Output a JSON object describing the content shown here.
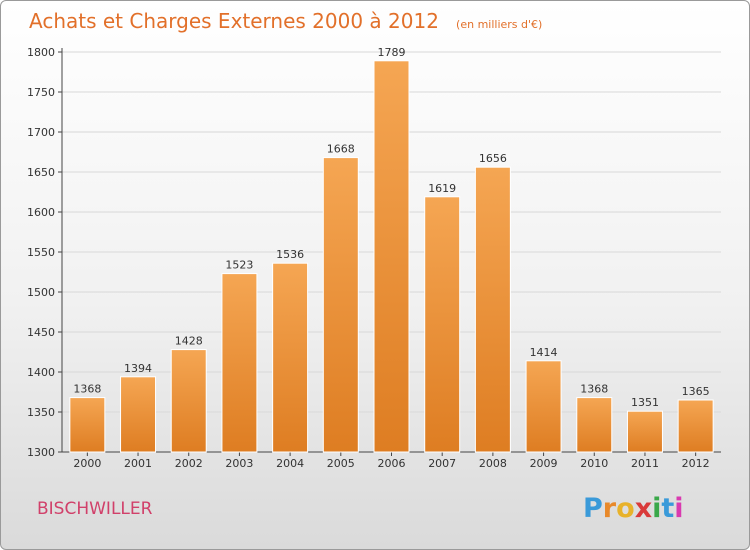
{
  "header": {
    "title": "Achats et Charges Externes 2000 à 2012",
    "unit": "(en milliers d'€)"
  },
  "footer": {
    "commune": "BISCHWILLER",
    "logo_letters": [
      "P",
      "r",
      "o",
      "x",
      "i",
      "t",
      "i"
    ],
    "logo_colors": [
      "#3a9ad9",
      "#e8892a",
      "#e8b22a",
      "#d93a3a",
      "#3aa84a",
      "#3a9ad9",
      "#d93ab0"
    ]
  },
  "colors": {
    "bar_top": "#f5a653",
    "bar_bottom": "#de7d22",
    "title": "#e2702a",
    "commune": "#d1406a",
    "grid": "#d8d8d8"
  },
  "chart_data": {
    "type": "bar",
    "title": "Achats et Charges Externes 2000 à 2012",
    "subtitle": "(en milliers d'€)",
    "categories": [
      "2000",
      "2001",
      "2002",
      "2003",
      "2004",
      "2005",
      "2006",
      "2007",
      "2008",
      "2009",
      "2010",
      "2011",
      "2012"
    ],
    "values": [
      1368,
      1394,
      1428,
      1523,
      1536,
      1668,
      1789,
      1619,
      1656,
      1414,
      1368,
      1351,
      1365
    ],
    "ylim": [
      1300,
      1800
    ],
    "yticks": [
      1300,
      1350,
      1400,
      1450,
      1500,
      1550,
      1600,
      1650,
      1700,
      1750,
      1800
    ],
    "grid": true,
    "data_labels": true
  }
}
